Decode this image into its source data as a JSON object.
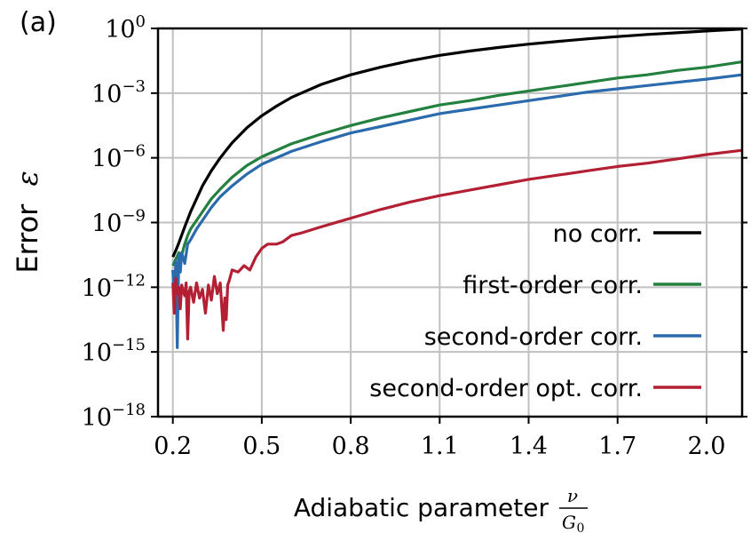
{
  "panel_label": "(a)",
  "chart_data": {
    "type": "line",
    "title": "",
    "xlabel": "Adiabatic parameter",
    "xlabel_math": {
      "numerator": "ν",
      "denominator": "G",
      "denominator_sub": "0"
    },
    "ylabel": "Error",
    "ylabel_symbol": "ε",
    "x_ticks": [
      "0.2",
      "0.5",
      "0.8",
      "1.1",
      "1.4",
      "1.7",
      "2.0"
    ],
    "y_ticks": [
      {
        "base": "10",
        "exponent": "0"
      },
      {
        "base": "10",
        "exponent": "−3"
      },
      {
        "base": "10",
        "exponent": "−6"
      },
      {
        "base": "10",
        "exponent": "−9"
      },
      {
        "base": "10",
        "exponent": "−12"
      },
      {
        "base": "10",
        "exponent": "−15"
      },
      {
        "base": "10",
        "exponent": "−18"
      }
    ],
    "xlim": [
      0.15,
      2.12
    ],
    "ylim_log10": [
      -18,
      0
    ],
    "yscale": "log",
    "grid": true,
    "legend_position": "bottom-right",
    "series": [
      {
        "name": "no corr.",
        "color": "#000000",
        "x": [
          0.2,
          0.21,
          0.22,
          0.24,
          0.26,
          0.28,
          0.3,
          0.33,
          0.36,
          0.4,
          0.45,
          0.5,
          0.55,
          0.6,
          0.7,
          0.8,
          0.9,
          1.0,
          1.1,
          1.2,
          1.3,
          1.4,
          1.5,
          1.6,
          1.7,
          1.8,
          1.9,
          2.0,
          2.12
        ],
        "log10_y": [
          -10.6,
          -10.3,
          -9.95,
          -9.2,
          -8.5,
          -7.9,
          -7.3,
          -6.6,
          -6.0,
          -5.3,
          -4.6,
          -4.05,
          -3.6,
          -3.2,
          -2.6,
          -2.15,
          -1.8,
          -1.5,
          -1.25,
          -1.05,
          -0.88,
          -0.73,
          -0.6,
          -0.48,
          -0.38,
          -0.28,
          -0.2,
          -0.12,
          -0.03
        ]
      },
      {
        "name": "first-order corr.",
        "color": "#23803f",
        "x": [
          0.2,
          0.21,
          0.22,
          0.23,
          0.24,
          0.25,
          0.26,
          0.28,
          0.3,
          0.33,
          0.36,
          0.4,
          0.45,
          0.5,
          0.6,
          0.7,
          0.8,
          0.9,
          1.0,
          1.1,
          1.2,
          1.3,
          1.4,
          1.5,
          1.6,
          1.7,
          1.8,
          1.9,
          2.0,
          2.12
        ],
        "log10_y": [
          -11.0,
          -10.7,
          -10.4,
          -10.5,
          -10.0,
          -9.6,
          -9.3,
          -8.9,
          -8.5,
          -7.9,
          -7.45,
          -6.9,
          -6.35,
          -5.95,
          -5.35,
          -4.9,
          -4.5,
          -4.15,
          -3.85,
          -3.55,
          -3.35,
          -3.1,
          -2.9,
          -2.7,
          -2.5,
          -2.3,
          -2.15,
          -1.95,
          -1.8,
          -1.55
        ]
      },
      {
        "name": "second-order corr.",
        "color": "#2a6aad",
        "x": [
          0.2,
          0.205,
          0.21,
          0.215,
          0.22,
          0.225,
          0.23,
          0.24,
          0.25,
          0.26,
          0.28,
          0.3,
          0.33,
          0.36,
          0.4,
          0.45,
          0.5,
          0.6,
          0.7,
          0.8,
          0.9,
          1.0,
          1.1,
          1.2,
          1.3,
          1.4,
          1.5,
          1.6,
          1.7,
          1.8,
          1.9,
          2.0,
          2.12
        ],
        "log10_y": [
          -11.2,
          -12.8,
          -10.8,
          -14.8,
          -10.5,
          -11.3,
          -10.4,
          -10.9,
          -10.0,
          -9.8,
          -9.3,
          -8.9,
          -8.3,
          -7.8,
          -7.3,
          -6.75,
          -6.3,
          -5.7,
          -5.25,
          -4.85,
          -4.55,
          -4.25,
          -3.95,
          -3.75,
          -3.55,
          -3.35,
          -3.15,
          -2.95,
          -2.8,
          -2.65,
          -2.5,
          -2.35,
          -2.15
        ]
      },
      {
        "name": "second-order opt. corr.",
        "color": "#b32034",
        "x": [
          0.2,
          0.205,
          0.21,
          0.215,
          0.22,
          0.225,
          0.23,
          0.235,
          0.24,
          0.245,
          0.25,
          0.255,
          0.26,
          0.27,
          0.28,
          0.29,
          0.3,
          0.31,
          0.32,
          0.33,
          0.34,
          0.35,
          0.36,
          0.37,
          0.375,
          0.38,
          0.385,
          0.39,
          0.4,
          0.42,
          0.44,
          0.46,
          0.48,
          0.5,
          0.52,
          0.55,
          0.57,
          0.6,
          0.63,
          0.7,
          0.8,
          0.9,
          1.0,
          1.1,
          1.2,
          1.3,
          1.4,
          1.5,
          1.6,
          1.7,
          1.8,
          1.9,
          2.0,
          2.12
        ],
        "log10_y": [
          -11.8,
          -13.2,
          -11.6,
          -12.3,
          -12.0,
          -13.0,
          -11.9,
          -12.2,
          -12.4,
          -11.8,
          -14.4,
          -12.2,
          -12.0,
          -12.7,
          -11.8,
          -12.5,
          -12.1,
          -13.2,
          -11.9,
          -12.6,
          -11.5,
          -12.3,
          -11.8,
          -14.0,
          -12.5,
          -13.5,
          -11.9,
          -11.7,
          -11.2,
          -11.3,
          -11.0,
          -11.2,
          -10.6,
          -10.2,
          -10.0,
          -10.0,
          -9.9,
          -9.6,
          -9.5,
          -9.2,
          -8.8,
          -8.4,
          -8.05,
          -7.75,
          -7.5,
          -7.25,
          -7.0,
          -6.8,
          -6.6,
          -6.4,
          -6.25,
          -6.05,
          -5.85,
          -5.65
        ]
      }
    ]
  }
}
